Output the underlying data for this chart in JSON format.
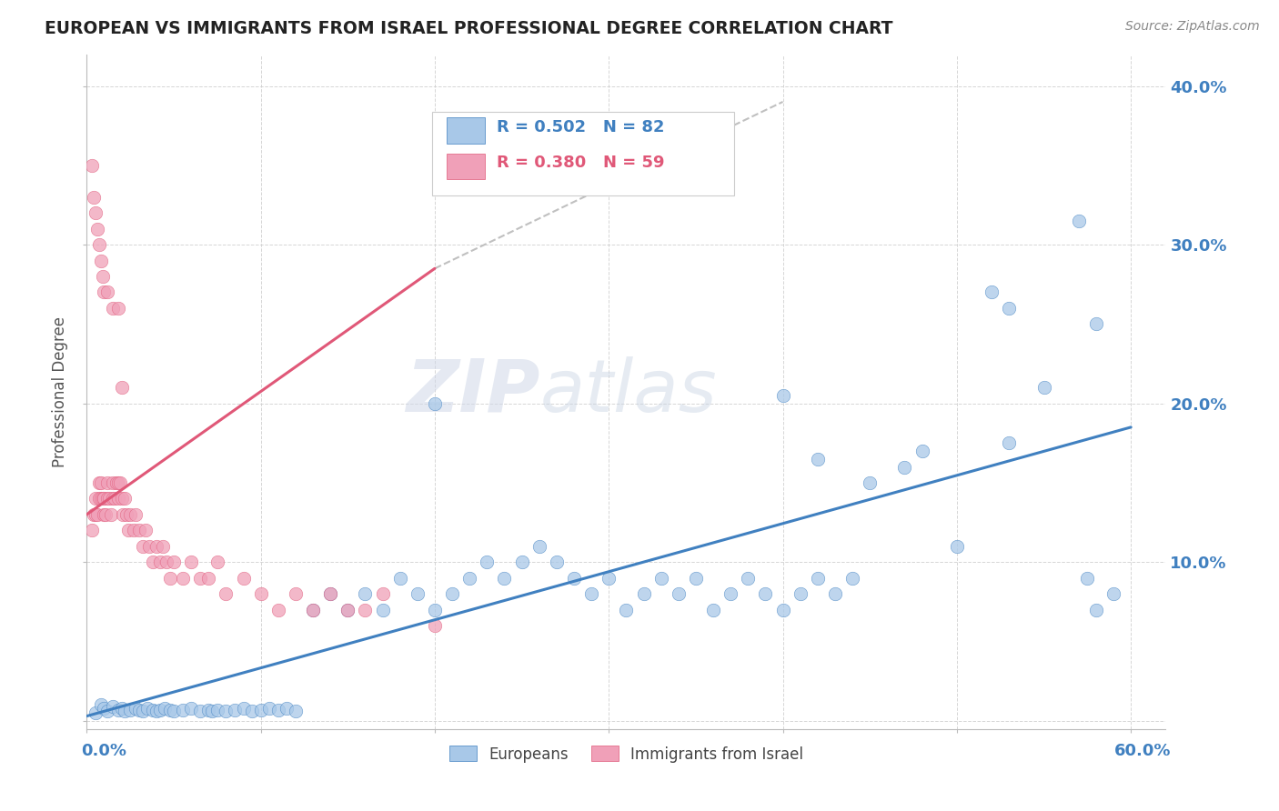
{
  "title": "EUROPEAN VS IMMIGRANTS FROM ISRAEL PROFESSIONAL DEGREE CORRELATION CHART",
  "source": "Source: ZipAtlas.com",
  "ylabel": "Professional Degree",
  "xlim": [
    0.0,
    0.62
  ],
  "ylim": [
    -0.005,
    0.42
  ],
  "blue_color": "#a8c8e8",
  "pink_color": "#f0a0b8",
  "blue_line_color": "#4080c0",
  "pink_line_color": "#e05878",
  "legend_blue_label": "Europeans",
  "legend_pink_label": "Immigrants from Israel",
  "R_blue": "0.502",
  "N_blue": "82",
  "R_pink": "0.380",
  "N_pink": "59",
  "watermark_zip": "ZIP",
  "watermark_atlas": "atlas",
  "blue_regression": [
    0.0,
    0.6,
    0.003,
    0.185
  ],
  "pink_regression_solid": [
    0.0,
    0.2,
    0.13,
    0.285
  ],
  "pink_regression_dashed": [
    0.2,
    0.4,
    0.285,
    0.39
  ],
  "blue_x": [
    0.005,
    0.008,
    0.01,
    0.012,
    0.015,
    0.018,
    0.02,
    0.022,
    0.025,
    0.028,
    0.03,
    0.032,
    0.035,
    0.038,
    0.04,
    0.042,
    0.045,
    0.048,
    0.05,
    0.055,
    0.06,
    0.065,
    0.07,
    0.072,
    0.075,
    0.08,
    0.085,
    0.09,
    0.095,
    0.1,
    0.105,
    0.11,
    0.115,
    0.12,
    0.13,
    0.14,
    0.15,
    0.16,
    0.17,
    0.18,
    0.19,
    0.2,
    0.21,
    0.22,
    0.23,
    0.24,
    0.25,
    0.26,
    0.27,
    0.28,
    0.29,
    0.3,
    0.31,
    0.32,
    0.33,
    0.34,
    0.35,
    0.36,
    0.37,
    0.38,
    0.39,
    0.4,
    0.41,
    0.42,
    0.43,
    0.44,
    0.45,
    0.47,
    0.48,
    0.5,
    0.52,
    0.53,
    0.55,
    0.57,
    0.575,
    0.58,
    0.59,
    0.4,
    0.42,
    0.58,
    0.53,
    0.2
  ],
  "blue_y": [
    0.005,
    0.01,
    0.008,
    0.006,
    0.009,
    0.007,
    0.008,
    0.006,
    0.007,
    0.008,
    0.007,
    0.006,
    0.008,
    0.007,
    0.006,
    0.007,
    0.008,
    0.007,
    0.006,
    0.007,
    0.008,
    0.006,
    0.007,
    0.006,
    0.007,
    0.006,
    0.007,
    0.008,
    0.006,
    0.007,
    0.008,
    0.007,
    0.008,
    0.006,
    0.07,
    0.08,
    0.07,
    0.08,
    0.07,
    0.09,
    0.08,
    0.07,
    0.08,
    0.09,
    0.1,
    0.09,
    0.1,
    0.11,
    0.1,
    0.09,
    0.08,
    0.09,
    0.07,
    0.08,
    0.09,
    0.08,
    0.09,
    0.07,
    0.08,
    0.09,
    0.08,
    0.07,
    0.08,
    0.09,
    0.08,
    0.09,
    0.15,
    0.16,
    0.17,
    0.11,
    0.27,
    0.26,
    0.21,
    0.315,
    0.09,
    0.07,
    0.08,
    0.205,
    0.165,
    0.25,
    0.175,
    0.2
  ],
  "pink_x": [
    0.003,
    0.004,
    0.005,
    0.005,
    0.006,
    0.007,
    0.007,
    0.008,
    0.008,
    0.009,
    0.01,
    0.01,
    0.011,
    0.012,
    0.012,
    0.013,
    0.014,
    0.015,
    0.015,
    0.016,
    0.017,
    0.018,
    0.018,
    0.019,
    0.02,
    0.021,
    0.022,
    0.023,
    0.024,
    0.025,
    0.027,
    0.028,
    0.03,
    0.032,
    0.034,
    0.036,
    0.038,
    0.04,
    0.042,
    0.044,
    0.046,
    0.048,
    0.05,
    0.055,
    0.06,
    0.065,
    0.07,
    0.075,
    0.08,
    0.09,
    0.1,
    0.11,
    0.12,
    0.13,
    0.14,
    0.15,
    0.16,
    0.17,
    0.2
  ],
  "pink_y": [
    0.12,
    0.13,
    0.13,
    0.14,
    0.13,
    0.14,
    0.15,
    0.14,
    0.15,
    0.14,
    0.13,
    0.14,
    0.13,
    0.14,
    0.15,
    0.14,
    0.13,
    0.14,
    0.15,
    0.14,
    0.15,
    0.14,
    0.15,
    0.15,
    0.14,
    0.13,
    0.14,
    0.13,
    0.12,
    0.13,
    0.12,
    0.13,
    0.12,
    0.11,
    0.12,
    0.11,
    0.1,
    0.11,
    0.1,
    0.11,
    0.1,
    0.09,
    0.1,
    0.09,
    0.1,
    0.09,
    0.09,
    0.1,
    0.08,
    0.09,
    0.08,
    0.07,
    0.08,
    0.07,
    0.08,
    0.07,
    0.07,
    0.08,
    0.06
  ],
  "pink_x_high": [
    0.003,
    0.004,
    0.005,
    0.006,
    0.007,
    0.008,
    0.009,
    0.01,
    0.012,
    0.015,
    0.018,
    0.02
  ],
  "pink_y_high": [
    0.35,
    0.33,
    0.32,
    0.31,
    0.3,
    0.29,
    0.28,
    0.27,
    0.27,
    0.26,
    0.26,
    0.21
  ]
}
